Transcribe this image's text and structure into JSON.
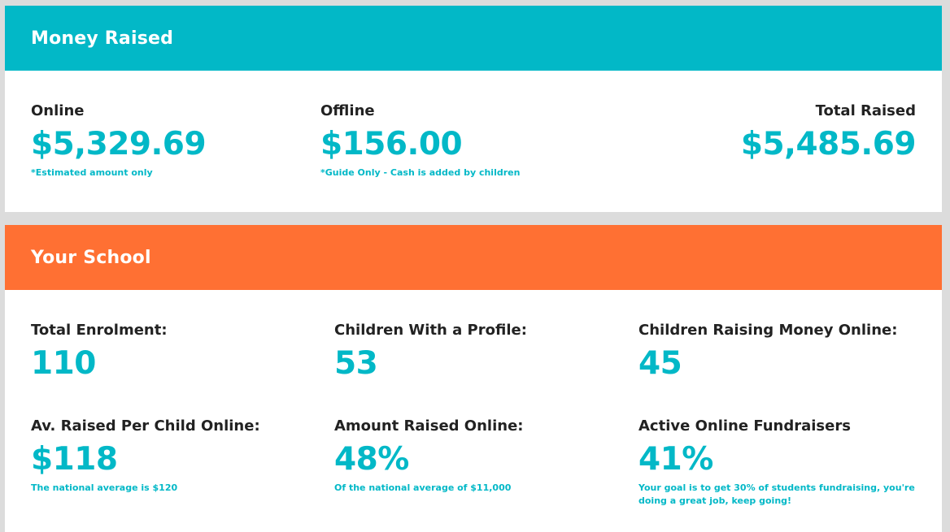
{
  "money_raised": {
    "title": "Money Raised",
    "online": {
      "label": "Online",
      "value": "$5,329.69",
      "note": "*Estimated amount only"
    },
    "offline": {
      "label": "Offline",
      "value": "$156.00",
      "note": "*Guide Only - Cash is added by children"
    },
    "total": {
      "label": "Total Raised",
      "value": "$5,485.69"
    }
  },
  "your_school": {
    "title": "Your School",
    "total_enrolment": {
      "label": "Total Enrolment:",
      "value": "110"
    },
    "children_with_profile": {
      "label": "Children With a Profile:",
      "value": "53"
    },
    "children_raising_online": {
      "label": "Children Raising Money Online:",
      "value": "45"
    },
    "av_raised_per_child": {
      "label": "Av. Raised Per Child Online:",
      "value": "$118",
      "note": "The national average is $120"
    },
    "amount_raised_online": {
      "label": "Amount Raised Online:",
      "value": "48%",
      "note": "Of the national average of $11,000"
    },
    "active_fundraisers": {
      "label": "Active Online Fundraisers",
      "value": "41%",
      "note": "Your goal is to get 30% of students fundraising, you're doing a great job, keep going!"
    }
  },
  "colors": {
    "accent": "#02b8c7",
    "orange": "#ff7033",
    "text": "#222222",
    "background": "#dcdcdc"
  }
}
